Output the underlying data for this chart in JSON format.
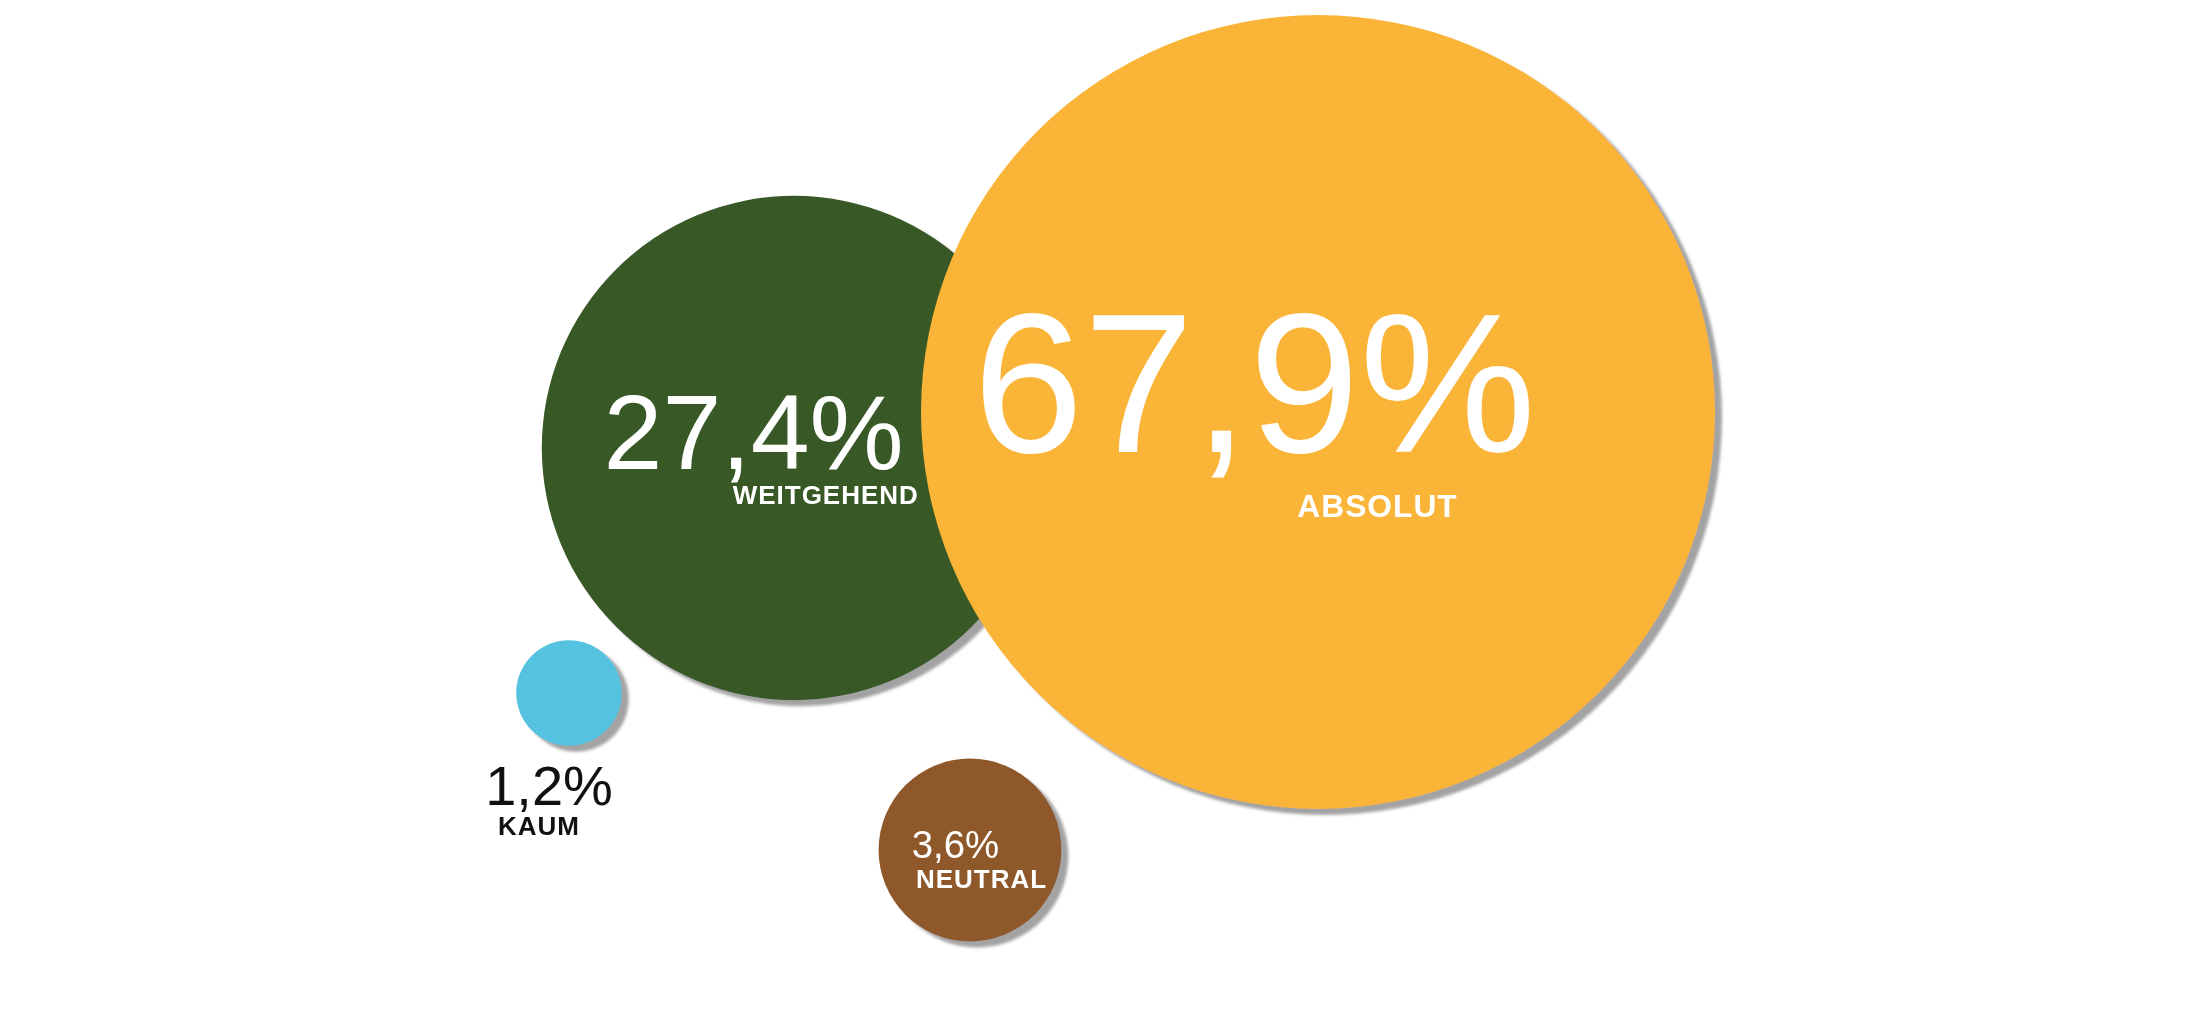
{
  "chart_data": {
    "type": "other",
    "categories": [
      "ABSOLUT",
      "WEITGEHEND",
      "NEUTRAL",
      "KAUM"
    ],
    "values": [
      67.9,
      27.4,
      3.6,
      1.2
    ],
    "value_labels": [
      "67,9%",
      "27,4%",
      "3,6%",
      "1,2%"
    ],
    "colors": [
      "#fab437",
      "#385927",
      "#8f592b",
      "#54c3e0"
    ]
  }
}
